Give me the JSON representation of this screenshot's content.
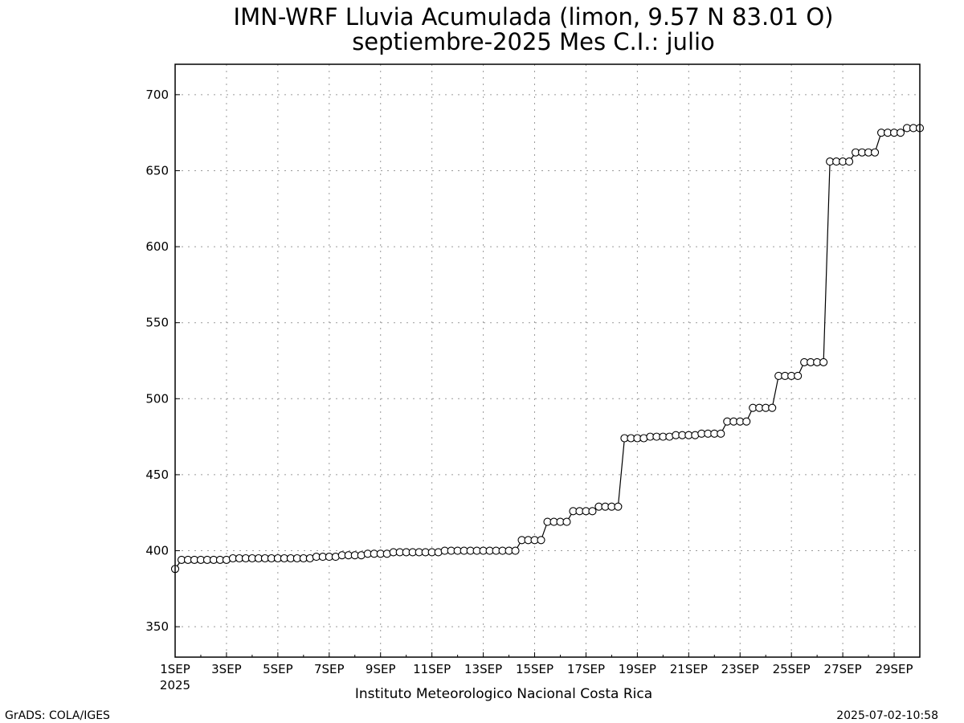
{
  "chart_data": {
    "type": "line",
    "title": "IMN-WRF  Lluvia Acumulada (limon, 9.57  N 83.01  O)",
    "subtitle": "septiembre-2025 Mes C.I.: julio",
    "xlabel": "",
    "ylabel": "",
    "xlim": [
      "2025-09-01 00:00",
      "2025-09-30 00:00"
    ],
    "ylim": [
      330,
      720
    ],
    "yticks": [
      350,
      400,
      450,
      500,
      550,
      600,
      650,
      700
    ],
    "xticks": [
      {
        "date": "2025-09-01",
        "label": "1SEP"
      },
      {
        "date": "2025-09-03",
        "label": "3SEP"
      },
      {
        "date": "2025-09-05",
        "label": "5SEP"
      },
      {
        "date": "2025-09-07",
        "label": "7SEP"
      },
      {
        "date": "2025-09-09",
        "label": "9SEP"
      },
      {
        "date": "2025-09-11",
        "label": "11SEP"
      },
      {
        "date": "2025-09-13",
        "label": "13SEP"
      },
      {
        "date": "2025-09-15",
        "label": "15SEP"
      },
      {
        "date": "2025-09-17",
        "label": "17SEP"
      },
      {
        "date": "2025-09-19",
        "label": "19SEP"
      },
      {
        "date": "2025-09-21",
        "label": "21SEP"
      },
      {
        "date": "2025-09-23",
        "label": "23SEP"
      },
      {
        "date": "2025-09-25",
        "label": "25SEP"
      },
      {
        "date": "2025-09-27",
        "label": "27SEP"
      },
      {
        "date": "2025-09-29",
        "label": "29SEP"
      }
    ],
    "year_label": "2025",
    "grid": true,
    "marker": "open-circle",
    "line_color": "#000000",
    "series": [
      {
        "x": [
          "2025-09-01 00:00",
          "2025-09-01 06:00",
          "2025-09-01 12:00",
          "2025-09-01 18:00",
          "2025-09-02 00:00",
          "2025-09-02 06:00",
          "2025-09-02 12:00",
          "2025-09-02 18:00",
          "2025-09-03 00:00",
          "2025-09-03 06:00",
          "2025-09-03 12:00",
          "2025-09-03 18:00",
          "2025-09-04 00:00",
          "2025-09-04 06:00",
          "2025-09-04 12:00",
          "2025-09-04 18:00",
          "2025-09-05 00:00",
          "2025-09-05 06:00",
          "2025-09-05 12:00",
          "2025-09-05 18:00",
          "2025-09-06 00:00",
          "2025-09-06 06:00",
          "2025-09-06 12:00",
          "2025-09-06 18:00",
          "2025-09-07 00:00",
          "2025-09-07 06:00",
          "2025-09-07 12:00",
          "2025-09-07 18:00",
          "2025-09-08 00:00",
          "2025-09-08 06:00",
          "2025-09-08 12:00",
          "2025-09-08 18:00",
          "2025-09-09 00:00",
          "2025-09-09 06:00",
          "2025-09-09 12:00",
          "2025-09-09 18:00",
          "2025-09-10 00:00",
          "2025-09-10 06:00",
          "2025-09-10 12:00",
          "2025-09-10 18:00",
          "2025-09-11 00:00",
          "2025-09-11 06:00",
          "2025-09-11 12:00",
          "2025-09-11 18:00",
          "2025-09-12 00:00",
          "2025-09-12 06:00",
          "2025-09-12 12:00",
          "2025-09-12 18:00",
          "2025-09-13 00:00",
          "2025-09-13 06:00",
          "2025-09-13 12:00",
          "2025-09-13 18:00",
          "2025-09-14 00:00",
          "2025-09-14 06:00",
          "2025-09-14 12:00",
          "2025-09-14 18:00",
          "2025-09-15 00:00",
          "2025-09-15 06:00",
          "2025-09-15 12:00",
          "2025-09-15 18:00",
          "2025-09-16 00:00",
          "2025-09-16 06:00",
          "2025-09-16 12:00",
          "2025-09-16 18:00",
          "2025-09-17 00:00",
          "2025-09-17 06:00",
          "2025-09-17 12:00",
          "2025-09-17 18:00",
          "2025-09-18 00:00",
          "2025-09-18 06:00",
          "2025-09-18 12:00",
          "2025-09-18 18:00",
          "2025-09-19 00:00",
          "2025-09-19 06:00",
          "2025-09-19 12:00",
          "2025-09-19 18:00",
          "2025-09-20 00:00",
          "2025-09-20 06:00",
          "2025-09-20 12:00",
          "2025-09-20 18:00",
          "2025-09-21 00:00",
          "2025-09-21 06:00",
          "2025-09-21 12:00",
          "2025-09-21 18:00",
          "2025-09-22 00:00",
          "2025-09-22 06:00",
          "2025-09-22 12:00",
          "2025-09-22 18:00",
          "2025-09-23 00:00",
          "2025-09-23 06:00",
          "2025-09-23 12:00",
          "2025-09-23 18:00",
          "2025-09-24 00:00",
          "2025-09-24 06:00",
          "2025-09-24 12:00",
          "2025-09-24 18:00",
          "2025-09-25 00:00",
          "2025-09-25 06:00",
          "2025-09-25 12:00",
          "2025-09-25 18:00",
          "2025-09-26 00:00",
          "2025-09-26 06:00",
          "2025-09-26 12:00",
          "2025-09-26 18:00",
          "2025-09-27 00:00",
          "2025-09-27 06:00",
          "2025-09-27 12:00",
          "2025-09-27 18:00",
          "2025-09-28 00:00",
          "2025-09-28 06:00",
          "2025-09-28 12:00",
          "2025-09-28 18:00",
          "2025-09-29 00:00",
          "2025-09-29 06:00",
          "2025-09-29 12:00",
          "2025-09-29 18:00",
          "2025-09-30 00:00"
        ],
        "y": [
          388,
          394,
          394,
          394,
          394,
          394,
          394,
          394,
          394,
          395,
          395,
          395,
          395,
          395,
          395,
          395,
          395,
          395,
          395,
          395,
          395,
          395,
          396,
          396,
          396,
          396,
          397,
          397,
          397,
          397,
          398,
          398,
          398,
          398,
          399,
          399,
          399,
          399,
          399,
          399,
          399,
          399,
          400,
          400,
          400,
          400,
          400,
          400,
          400,
          400,
          400,
          400,
          400,
          400,
          407,
          407,
          407,
          407,
          419,
          419,
          419,
          419,
          426,
          426,
          426,
          426,
          429,
          429,
          429,
          429,
          474,
          474,
          474,
          474,
          475,
          475,
          475,
          475,
          476,
          476,
          476,
          476,
          477,
          477,
          477,
          477,
          485,
          485,
          485,
          485,
          494,
          494,
          494,
          494,
          515,
          515,
          515,
          515,
          524,
          524,
          524,
          524,
          656,
          656,
          656,
          656,
          662,
          662,
          662,
          662,
          675,
          675,
          675,
          675,
          678,
          678,
          678
        ]
      }
    ]
  },
  "footer": {
    "institution": "Instituto Meteorologico Nacional Costa Rica",
    "software": "GrADS: COLA/IGES",
    "timestamp": "2025-07-02-10:58"
  }
}
